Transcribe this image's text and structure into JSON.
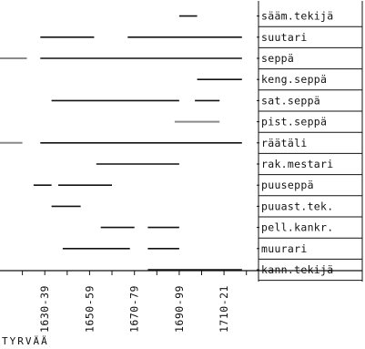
{
  "chart_data": {
    "type": "timeline",
    "region_label": "TYRVÄÄ",
    "x_ticks": [
      "1630-39",
      "1650-59",
      "1670-79",
      "1690-99",
      "1710-21"
    ],
    "x_decades": [
      1630,
      1650,
      1670,
      1690,
      1710
    ],
    "xlim": [
      1610,
      1725
    ],
    "grid": false,
    "legend": "none",
    "colors": {
      "line": "#111111",
      "faint": "#8a8a8a",
      "frame": "#111111"
    },
    "rows": [
      {
        "label": "sääm.tekijä",
        "segments": [
          {
            "from": 1690,
            "to": 1698,
            "style": "solid"
          }
        ]
      },
      {
        "label": "suutari",
        "segments": [
          {
            "from": 1628,
            "to": 1652,
            "style": "solid"
          },
          {
            "from": 1667,
            "to": 1718,
            "style": "solid"
          }
        ]
      },
      {
        "label": "seppä",
        "segments": [
          {
            "from": 1610,
            "to": 1622,
            "style": "faint"
          },
          {
            "from": 1628,
            "to": 1718,
            "style": "solid"
          }
        ]
      },
      {
        "label": "keng.seppä",
        "segments": [
          {
            "from": 1698,
            "to": 1718,
            "style": "solid"
          }
        ]
      },
      {
        "label": "sat.seppä",
        "segments": [
          {
            "from": 1633,
            "to": 1690,
            "style": "solid"
          },
          {
            "from": 1697,
            "to": 1708,
            "style": "solid"
          }
        ]
      },
      {
        "label": "pist.seppä",
        "segments": [
          {
            "from": 1688,
            "to": 1708,
            "style": "faint"
          }
        ]
      },
      {
        "label": "räätäli",
        "segments": [
          {
            "from": 1610,
            "to": 1620,
            "style": "faint"
          },
          {
            "from": 1628,
            "to": 1718,
            "style": "solid"
          }
        ]
      },
      {
        "label": "rak.mestari",
        "segments": [
          {
            "from": 1653,
            "to": 1690,
            "style": "solid"
          }
        ]
      },
      {
        "label": "puuseppä",
        "segments": [
          {
            "from": 1625,
            "to": 1633,
            "style": "solid"
          },
          {
            "from": 1636,
            "to": 1660,
            "style": "solid"
          }
        ]
      },
      {
        "label": "puuast.tek.",
        "segments": [
          {
            "from": 1633,
            "to": 1646,
            "style": "solid"
          }
        ]
      },
      {
        "label": "pell.kankr.",
        "segments": [
          {
            "from": 1655,
            "to": 1670,
            "style": "solid"
          },
          {
            "from": 1676,
            "to": 1690,
            "style": "solid"
          }
        ]
      },
      {
        "label": "muurari",
        "segments": [
          {
            "from": 1638,
            "to": 1668,
            "style": "solid"
          },
          {
            "from": 1676,
            "to": 1690,
            "style": "solid"
          }
        ]
      },
      {
        "label": "kann.tekijä",
        "segments": [
          {
            "from": 1676,
            "to": 1718,
            "style": "solid"
          }
        ]
      }
    ]
  }
}
